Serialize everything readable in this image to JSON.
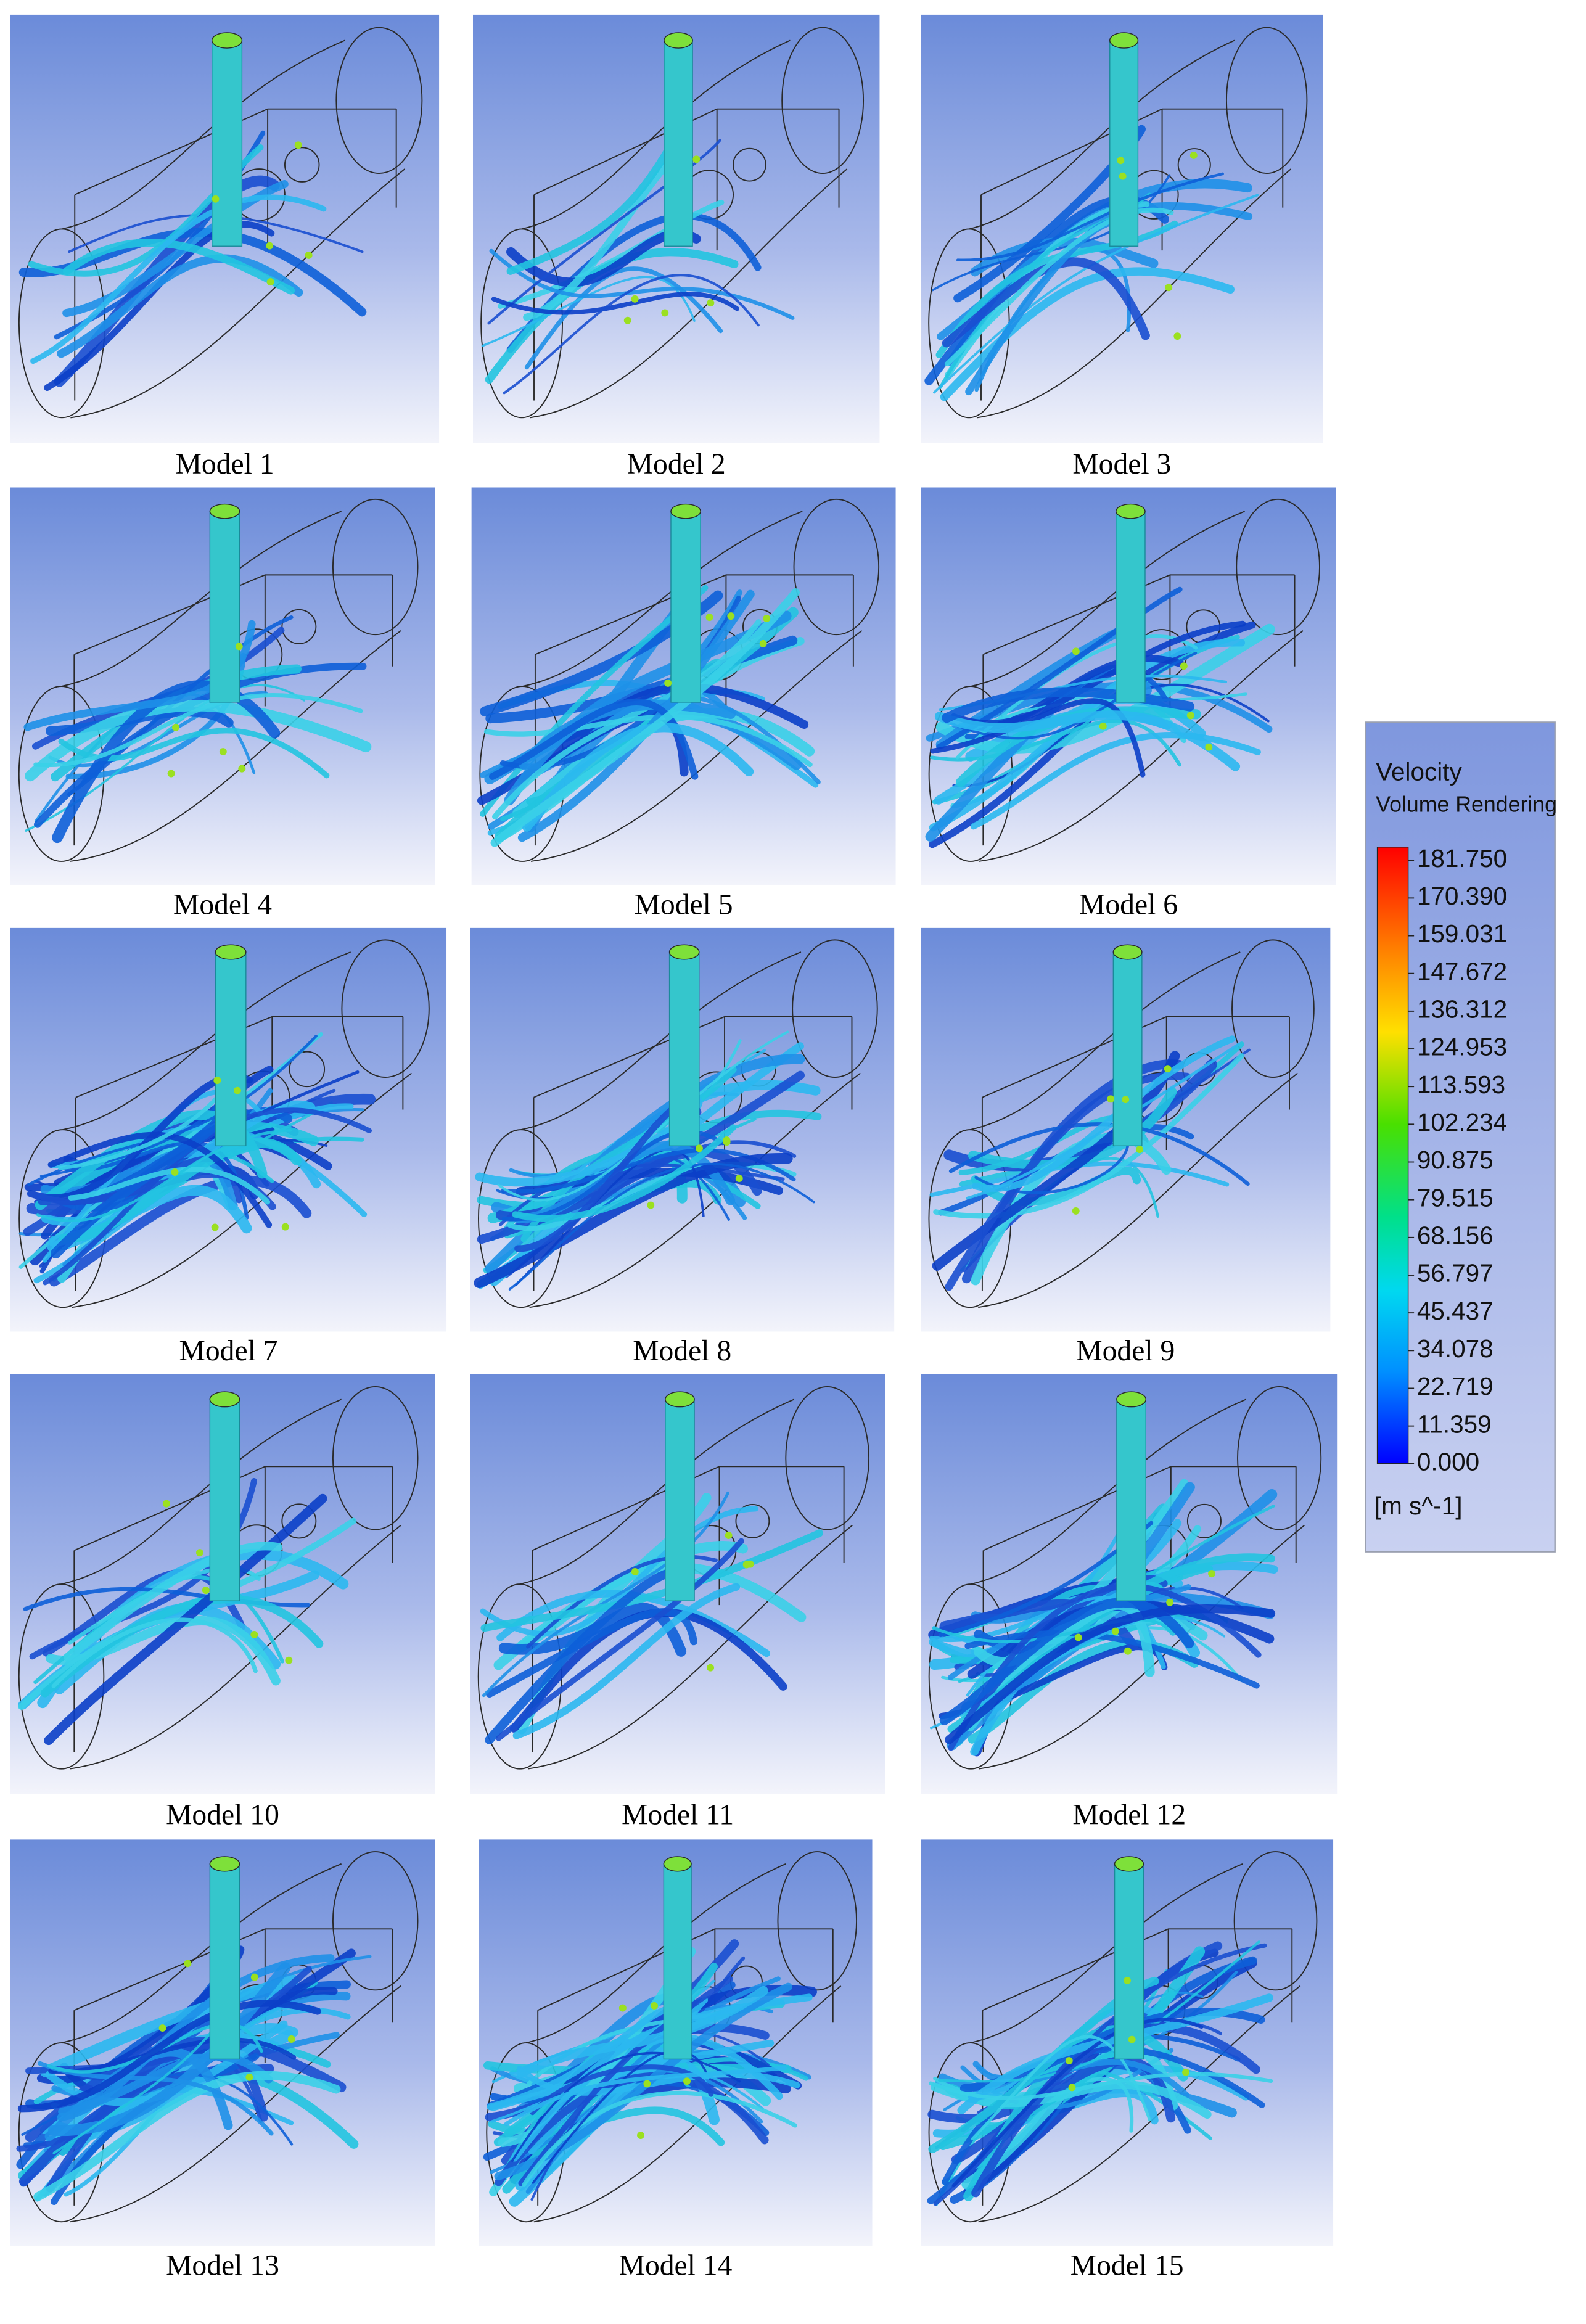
{
  "panels": [
    {
      "label": "Model 1"
    },
    {
      "label": "Model 2"
    },
    {
      "label": "Model 3"
    },
    {
      "label": "Model 4"
    },
    {
      "label": "Model 5"
    },
    {
      "label": "Model 6"
    },
    {
      "label": "Model 7"
    },
    {
      "label": "Model 8"
    },
    {
      "label": "Model 9"
    },
    {
      "label": "Model 10"
    },
    {
      "label": "Model 11"
    },
    {
      "label": "Model 12"
    },
    {
      "label": "Model 13"
    },
    {
      "label": "Model 14"
    },
    {
      "label": "Model 15"
    }
  ],
  "legend": {
    "title": "Velocity",
    "subtitle": "Volume Rendering",
    "ticks": [
      "181.750",
      "170.390",
      "159.031",
      "147.672",
      "136.312",
      "124.953",
      "113.593",
      "102.234",
      "90.875",
      "79.515",
      "68.156",
      "56.797",
      "45.437",
      "34.078",
      "22.719",
      "11.359",
      "0.000"
    ],
    "unit": "[m s^-1]"
  }
}
